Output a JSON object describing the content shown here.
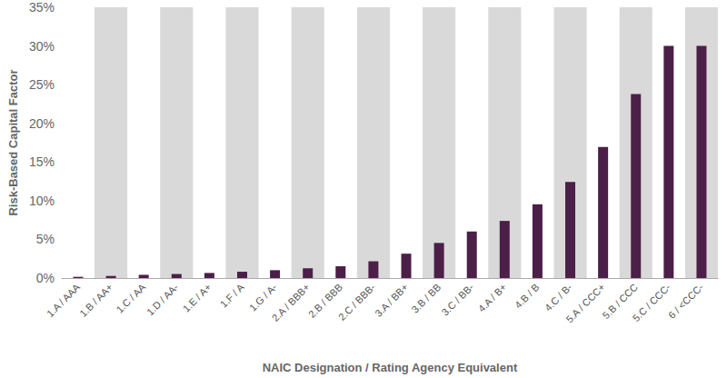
{
  "chart_data": {
    "type": "bar",
    "xlabel": "NAIC Designation / Rating Agency Equivalent",
    "ylabel": "Risk-Based Capital Factor",
    "categories": [
      "1.A / AAA",
      "1.B / AA+",
      "1.C / AA",
      "1.D / AA-",
      "1.E / A+",
      "1.F / A",
      "1.G / A-",
      "2.A / BBB+",
      "2.B / BBB",
      "2.C / BBB-",
      "3.A / BB+",
      "3.B / BB",
      "3.C / BB-",
      "4.A / B+",
      "4.B / B",
      "4.C / B-",
      "5.A / CCC+",
      "5.B / CCC",
      "5.C / CCC-",
      "6 / <CCC-"
    ],
    "values": [
      0.158,
      0.271,
      0.419,
      0.523,
      0.657,
      0.816,
      1.016,
      1.261,
      1.523,
      2.168,
      3.151,
      4.537,
      6.017,
      7.386,
      9.535,
      12.428,
      16.942,
      23.798,
      30.0,
      30.0
    ],
    "color": "#4b1f47",
    "ylim": [
      0,
      35
    ],
    "yticks": [
      {
        "value": 0,
        "label": "0%"
      },
      {
        "value": 5,
        "label": "5%"
      },
      {
        "value": 10,
        "label": "10%"
      },
      {
        "value": 15,
        "label": "15%"
      },
      {
        "value": 20,
        "label": "20%"
      },
      {
        "value": 25,
        "label": "25%"
      },
      {
        "value": 30,
        "label": "30%"
      },
      {
        "value": 35,
        "label": "35%"
      }
    ],
    "grid": false
  }
}
